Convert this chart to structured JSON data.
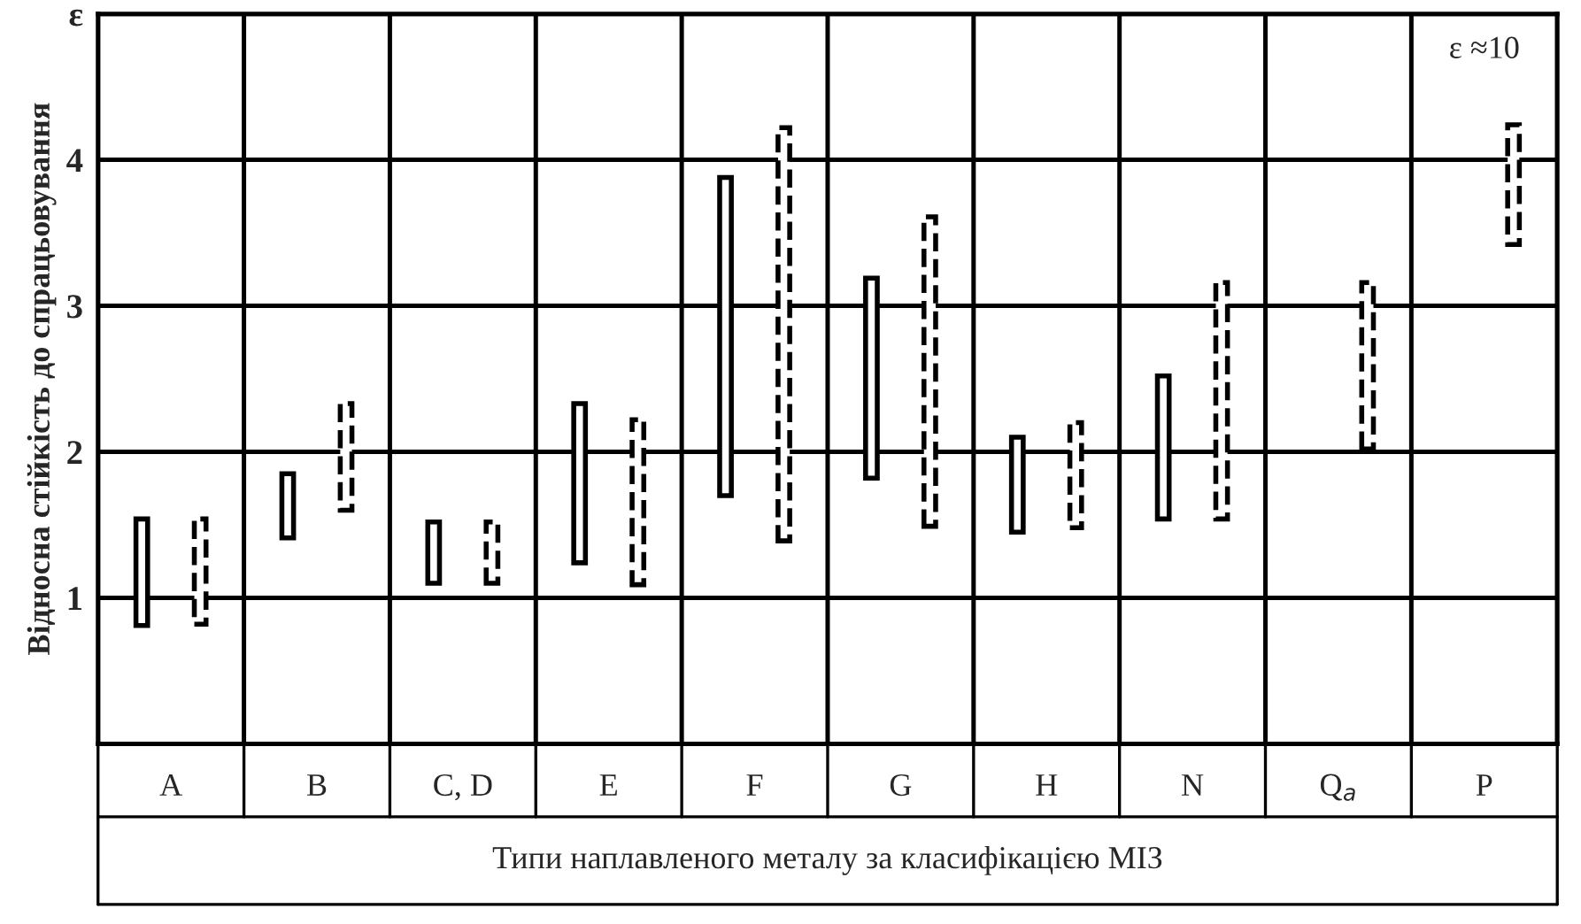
{
  "chart_data": {
    "type": "bar",
    "ylabel": "Відносна стійкість до спрацьовування",
    "xlabel": "Типи наплавленого металу за класифікацією МІЗ",
    "categories": [
      "A",
      "B",
      "C, D",
      "E",
      "F",
      "G",
      "H",
      "N",
      "Q$_{a}$",
      "P"
    ],
    "series": [
      {
        "color": "#000000",
        "line_style": "solid",
        "base": [
          0.81,
          1.41,
          1.1,
          1.24,
          1.7,
          1.82,
          1.45,
          1.54,
          null,
          null
        ],
        "values": [
          0.73,
          0.44,
          0.42,
          1.09,
          2.18,
          1.37,
          0.65,
          0.98,
          null,
          null
        ]
      },
      {
        "color": "#000000",
        "line_style": "dashed",
        "base": [
          0.82,
          1.6,
          1.1,
          1.09,
          1.39,
          1.49,
          1.48,
          1.54,
          2.02,
          3.42
        ],
        "values": [
          0.72,
          0.73,
          0.42,
          1.13,
          2.83,
          2.12,
          0.72,
          1.62,
          1.14,
          0.82
        ]
      }
    ],
    "ylim": [
      0,
      5
    ],
    "yticks": [
      {
        "value": 0,
        "label": null
      },
      1,
      2,
      3,
      4,
      {
        "value": 5,
        "label": "ε"
      }
    ],
    "grid": true,
    "annotations": [
      "ε ≈10"
    ]
  }
}
